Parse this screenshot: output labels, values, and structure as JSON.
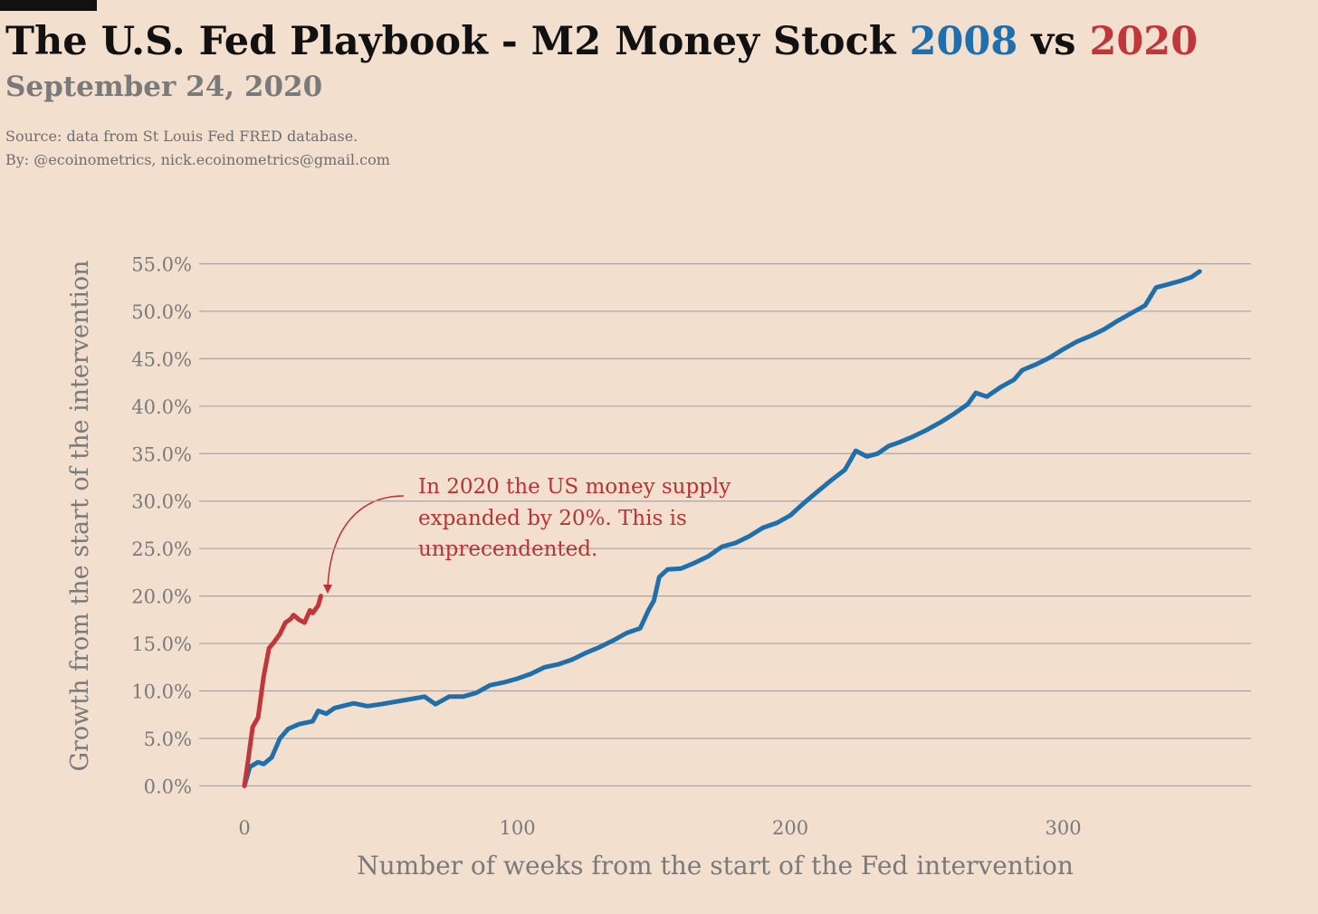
{
  "chart_data": {
    "type": "line",
    "title": "The U.S. Fed Playbook - M2 Money Stock",
    "title_joiner": "vs",
    "subtitle": "September 24, 2020",
    "source": [
      "Source: data from  St Louis Fed FRED database.",
      "By: @ecoinometrics, nick.ecoinometrics@gmail.com"
    ],
    "x_label": "Number of weeks from the start of the Fed intervention",
    "y_label": "Growth from the start of the intervention",
    "annotation": [
      "In 2020 the US money supply",
      "expanded by 20%. This is",
      "unprecendented."
    ],
    "xlim": [
      -16.6,
      368.8
    ],
    "ylim": [
      -1.2,
      56
    ],
    "xticks": [
      0,
      100,
      200,
      300
    ],
    "yticks": [
      {
        "value": 0,
        "label": "0.0%"
      },
      {
        "value": 5,
        "label": "5.0%"
      },
      {
        "value": 10,
        "label": "10.0%"
      },
      {
        "value": 15,
        "label": "15.0%"
      },
      {
        "value": 20,
        "label": "20.0%"
      },
      {
        "value": 25,
        "label": "25.0%"
      },
      {
        "value": 30,
        "label": "30.0%"
      },
      {
        "value": 35,
        "label": "35.0%"
      },
      {
        "value": 40,
        "label": "40.0%"
      },
      {
        "value": 45,
        "label": "45.0%"
      },
      {
        "value": 50,
        "label": "50.0%"
      },
      {
        "value": 55,
        "label": "55.0%"
      }
    ],
    "grid": "y",
    "series": [
      {
        "name": "2008",
        "color": "#1f6fad",
        "x": [
          0,
          2,
          5,
          7,
          10,
          13,
          16,
          20,
          25,
          27,
          30,
          33,
          40,
          45,
          50,
          60,
          66,
          70,
          75,
          80,
          85,
          90,
          95,
          100,
          105,
          110,
          115,
          120,
          125,
          130,
          135,
          140,
          145,
          148,
          150,
          152,
          155,
          160,
          165,
          170,
          175,
          180,
          185,
          190,
          195,
          200,
          205,
          210,
          215,
          220,
          224,
          228,
          232,
          236,
          240,
          245,
          250,
          255,
          260,
          265,
          268,
          272,
          277,
          282,
          285,
          290,
          295,
          300,
          305,
          310,
          315,
          320,
          325,
          330,
          334,
          338,
          343,
          347,
          350
        ],
        "values": [
          0,
          2,
          2.5,
          2.3,
          3,
          5,
          6,
          6.5,
          6.8,
          7.9,
          7.6,
          8.2,
          8.7,
          8.4,
          8.6,
          9.1,
          9.4,
          8.6,
          9.4,
          9.4,
          9.8,
          10.6,
          10.9,
          11.3,
          11.8,
          12.5,
          12.8,
          13.3,
          14.0,
          14.6,
          15.3,
          16.1,
          16.6,
          18.5,
          19.5,
          22,
          22.8,
          22.9,
          23.5,
          24.2,
          25.2,
          25.6,
          26.3,
          27.2,
          27.7,
          28.5,
          29.8,
          31.0,
          32.2,
          33.3,
          35.3,
          34.7,
          35,
          35.8,
          36.2,
          36.8,
          37.5,
          38.3,
          39.2,
          40.2,
          41.4,
          41.0,
          42.0,
          42.8,
          43.8,
          44.4,
          45.1,
          46.0,
          46.8,
          47.4,
          48.1,
          49.0,
          49.8,
          50.6,
          52.5,
          52.8,
          53.2,
          53.6,
          54.2
        ]
      },
      {
        "name": "2020",
        "color": "#c0363a",
        "x": [
          0,
          1,
          3,
          5,
          7,
          9,
          11,
          13,
          15,
          17,
          18,
          20,
          22,
          24,
          25,
          27,
          28
        ],
        "values": [
          0,
          2,
          6.2,
          7.2,
          11.5,
          14.5,
          15.2,
          16,
          17.2,
          17.6,
          18,
          17.5,
          17.2,
          18.5,
          18.2,
          19,
          20.0
        ]
      }
    ]
  }
}
